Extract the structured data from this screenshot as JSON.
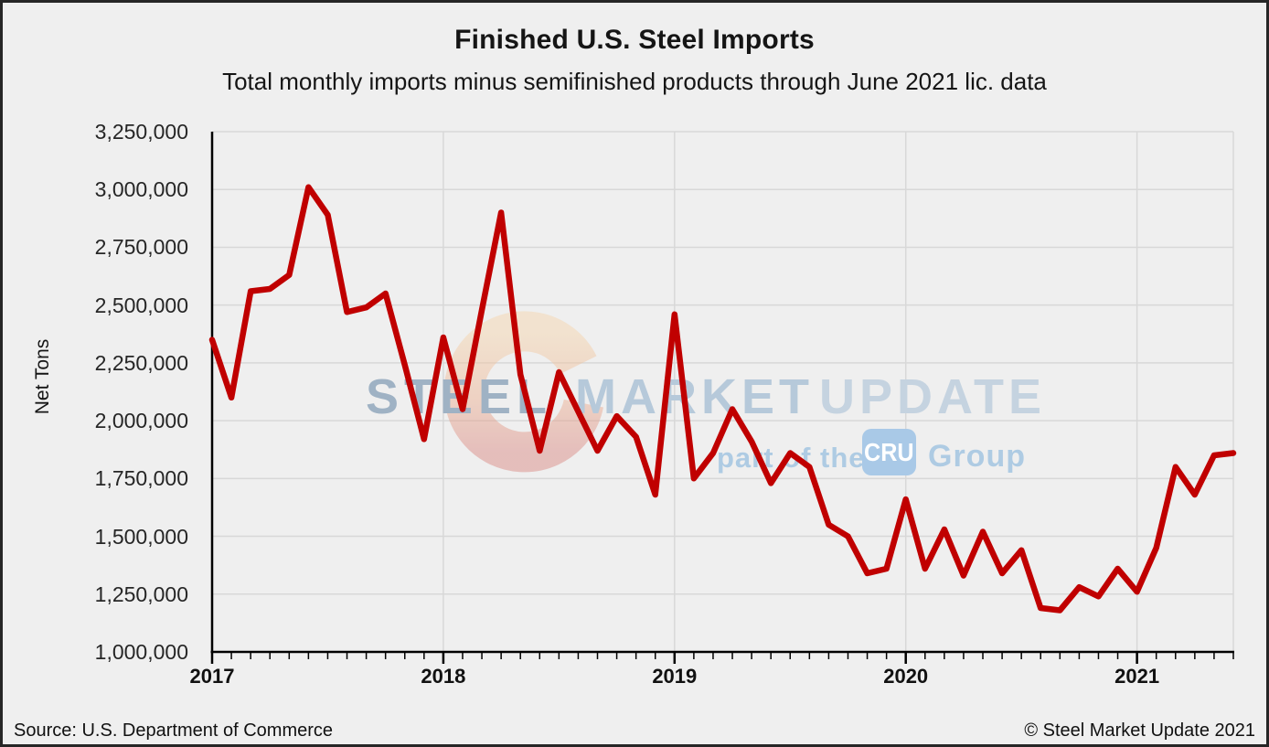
{
  "title": "Finished U.S. Steel Imports",
  "subtitle": "Total monthly imports minus semifinished products through June 2021 lic. data",
  "footer": {
    "source": "Source: U.S. Department of Commerce",
    "copyright": "© Steel Market Update 2021"
  },
  "watermark": {
    "word1": "STEEL",
    "word2": "MARKET",
    "word3": "UPDATE",
    "tagline_prefix": "part of the",
    "cru": "CRU",
    "tagline_suffix": "Group"
  },
  "colors": {
    "line": "#c00000",
    "grid": "#d8d8d8",
    "axis": "#000000",
    "background": "#efefef",
    "watermark_steel": "#9fb2c4",
    "watermark_market": "#b6c9da",
    "watermark_update": "#c5d3e0",
    "watermark_blue": "#aecbe3",
    "watermark_cru_bg": "#a9c9e7",
    "watermark_cru_text": "#ffffff",
    "watermark_crescent_top": "#f5d3a8",
    "watermark_crescent_bottom": "#d8827c"
  },
  "chart_data": {
    "type": "line",
    "title": "Finished U.S. Steel Imports",
    "subtitle": "Total monthly imports minus semifinished products through June 2021 lic. data",
    "xlabel": "",
    "ylabel": "Net Tons",
    "units": "Net Tons",
    "frequency": "monthly",
    "x": [
      "2017-01",
      "2017-02",
      "2017-03",
      "2017-04",
      "2017-05",
      "2017-06",
      "2017-07",
      "2017-08",
      "2017-09",
      "2017-10",
      "2017-11",
      "2017-12",
      "2018-01",
      "2018-02",
      "2018-03",
      "2018-04",
      "2018-05",
      "2018-06",
      "2018-07",
      "2018-08",
      "2018-09",
      "2018-10",
      "2018-11",
      "2018-12",
      "2019-01",
      "2019-02",
      "2019-03",
      "2019-04",
      "2019-05",
      "2019-06",
      "2019-07",
      "2019-08",
      "2019-09",
      "2019-10",
      "2019-11",
      "2019-12",
      "2020-01",
      "2020-02",
      "2020-03",
      "2020-04",
      "2020-05",
      "2020-06",
      "2020-07",
      "2020-08",
      "2020-09",
      "2020-10",
      "2020-11",
      "2020-12",
      "2021-01",
      "2021-02",
      "2021-03",
      "2021-04",
      "2021-05",
      "2021-06"
    ],
    "series": [
      {
        "name": "Finished U.S. steel imports (net tons)",
        "color": "#c00000",
        "values": [
          2350000,
          2100000,
          2560000,
          2570000,
          2630000,
          3010000,
          2890000,
          2470000,
          2490000,
          2550000,
          2240000,
          1920000,
          2360000,
          2050000,
          2480000,
          2900000,
          2200000,
          1870000,
          2210000,
          2040000,
          1870000,
          2020000,
          1930000,
          1680000,
          2460000,
          1750000,
          1860000,
          2050000,
          1910000,
          1730000,
          1860000,
          1800000,
          1550000,
          1500000,
          1340000,
          1360000,
          1660000,
          1360000,
          1530000,
          1330000,
          1520000,
          1340000,
          1440000,
          1190000,
          1180000,
          1280000,
          1240000,
          1360000,
          1260000,
          1450000,
          1800000,
          1680000,
          1850000,
          1860000
        ]
      }
    ],
    "xticks": [
      "2017",
      "2018",
      "2019",
      "2020",
      "2021"
    ],
    "yticks": [
      "3,250,000",
      "3,000,000",
      "2,750,000",
      "2,500,000",
      "2,250,000",
      "2,000,000",
      "1,750,000",
      "1,500,000",
      "1,250,000",
      "1,000,000"
    ],
    "ylim": [
      1000000,
      3250000
    ],
    "ytick_step": 250000,
    "grid": true,
    "legend": false
  }
}
